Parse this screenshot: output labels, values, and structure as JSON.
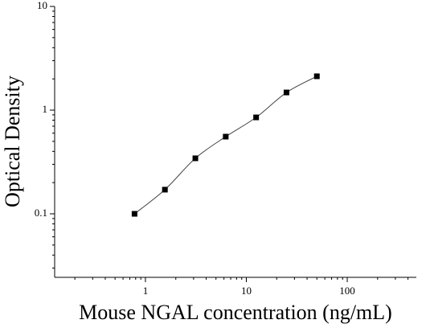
{
  "chart_data": {
    "type": "scatter",
    "x_label": "Mouse NGAL concentration (ng/mL)",
    "y_label": "Optical Density",
    "x": [
      0.78,
      1.56,
      3.125,
      6.25,
      12.5,
      25,
      50
    ],
    "series": [
      {
        "color": "#000000",
        "values": [
          0.1,
          0.171,
          0.343,
          0.555,
          0.851,
          1.48,
          2.12
        ]
      }
    ],
    "fit_line": true,
    "xlog": true,
    "ylog": true,
    "xlim": [
      0.126,
      484
    ],
    "ylim": [
      0.0244,
      10
    ],
    "xticks": [
      1,
      10,
      100
    ],
    "yticks": [
      0.1,
      1,
      10
    ]
  }
}
